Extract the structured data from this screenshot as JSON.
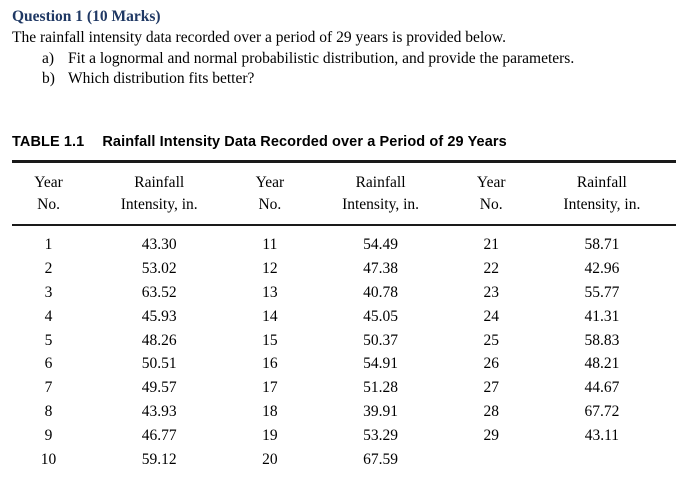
{
  "colors": {
    "heading_blue": "#1f3864",
    "rule_black": "#1a1a1a"
  },
  "question": {
    "heading": "Question 1 (10 Marks)",
    "intro": "The rainfall intensity data recorded over a period of 29 years is provided below.",
    "items": [
      {
        "marker": "a)",
        "text": "Fit a lognormal and normal probabilistic distribution, and provide the parameters."
      },
      {
        "marker": "b)",
        "text": "Which distribution fits better?"
      }
    ]
  },
  "table": {
    "label": "TABLE 1.1",
    "title": "Rainfall Intensity Data Recorded over a Period of 29 Years",
    "headers": [
      {
        "top": "Year",
        "bottom": "No."
      },
      {
        "top": "Rainfall",
        "bottom": "Intensity, in."
      },
      {
        "top": "Year",
        "bottom": "No."
      },
      {
        "top": "Rainfall",
        "bottom": "Intensity, in."
      },
      {
        "top": "Year",
        "bottom": "No."
      },
      {
        "top": "Rainfall",
        "bottom": "Intensity, in."
      }
    ],
    "rows": [
      [
        "1",
        "43.30",
        "11",
        "54.49",
        "21",
        "58.71"
      ],
      [
        "2",
        "53.02",
        "12",
        "47.38",
        "22",
        "42.96"
      ],
      [
        "3",
        "63.52",
        "13",
        "40.78",
        "23",
        "55.77"
      ],
      [
        "4",
        "45.93",
        "14",
        "45.05",
        "24",
        "41.31"
      ],
      [
        "5",
        "48.26",
        "15",
        "50.37",
        "25",
        "58.83"
      ],
      [
        "6",
        "50.51",
        "16",
        "54.91",
        "26",
        "48.21"
      ],
      [
        "7",
        "49.57",
        "17",
        "51.28",
        "27",
        "44.67"
      ],
      [
        "8",
        "43.93",
        "18",
        "39.91",
        "28",
        "67.72"
      ],
      [
        "9",
        "46.77",
        "19",
        "53.29",
        "29",
        "43.11"
      ],
      [
        "10",
        "59.12",
        "20",
        "67.59",
        "",
        ""
      ]
    ]
  }
}
